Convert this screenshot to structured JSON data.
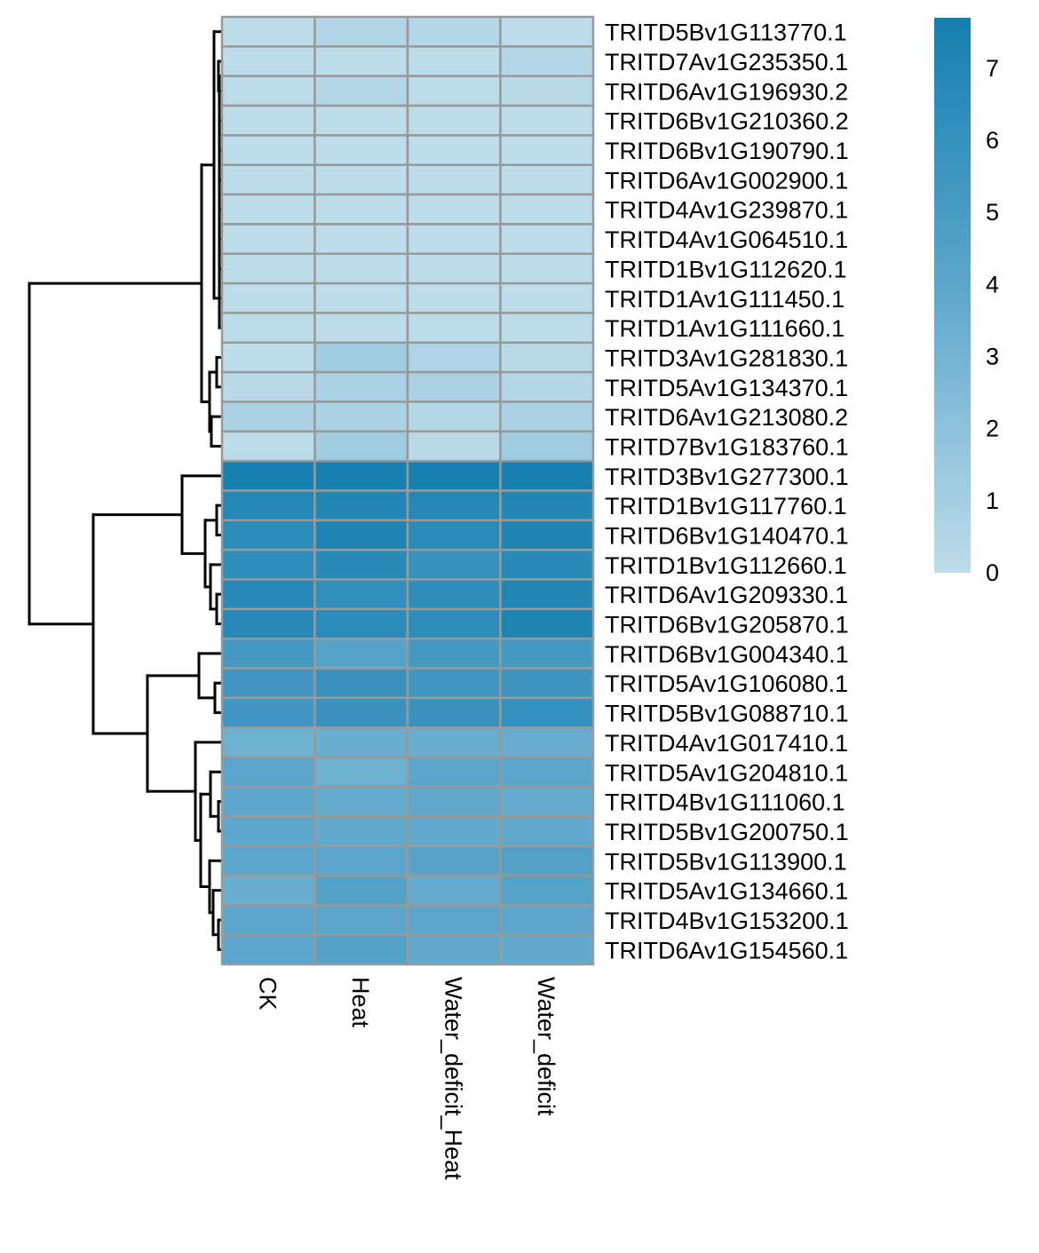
{
  "chart_data": {
    "type": "heatmap",
    "title": "",
    "columns": [
      "CK",
      "Heat",
      "Water_deficit_Heat",
      "Water_deficit"
    ],
    "rows": [
      "TRITD5Bv1G113770.1",
      "TRITD7Av1G235350.1",
      "TRITD6Av1G196930.2",
      "TRITD6Bv1G210360.2",
      "TRITD6Bv1G190790.1",
      "TRITD6Av1G002900.1",
      "TRITD4Av1G239870.1",
      "TRITD4Av1G064510.1",
      "TRITD1Bv1G112620.1",
      "TRITD1Av1G111450.1",
      "TRITD1Av1G111660.1",
      "TRITD3Av1G281830.1",
      "TRITD5Av1G134370.1",
      "TRITD6Av1G213080.2",
      "TRITD7Bv1G183760.1",
      "TRITD3Bv1G277300.1",
      "TRITD1Bv1G117760.1",
      "TRITD6Bv1G140470.1",
      "TRITD1Bv1G112660.1",
      "TRITD6Av1G209330.1",
      "TRITD6Bv1G205870.1",
      "TRITD6Bv1G004340.1",
      "TRITD5Av1G106080.1",
      "TRITD5Bv1G088710.1",
      "TRITD4Av1G017410.1",
      "TRITD5Av1G204810.1",
      "TRITD4Bv1G111060.1",
      "TRITD5Bv1G200750.1",
      "TRITD5Bv1G113900.1",
      "TRITD5Av1G134660.1",
      "TRITD4Bv1G153200.1",
      "TRITD6Av1G154560.1"
    ],
    "values": [
      [
        0.1,
        0.5,
        0.4,
        0.1
      ],
      [
        0.0,
        0.1,
        0.1,
        0.4
      ],
      [
        0.1,
        0.4,
        0.1,
        0.2
      ],
      [
        0.0,
        0.0,
        0.0,
        0.0
      ],
      [
        0.0,
        0.0,
        0.0,
        0.0
      ],
      [
        0.0,
        0.0,
        0.0,
        0.0
      ],
      [
        0.0,
        0.0,
        0.0,
        0.0
      ],
      [
        0.0,
        0.0,
        0.0,
        0.0
      ],
      [
        0.0,
        0.0,
        0.0,
        0.0
      ],
      [
        0.0,
        0.0,
        0.0,
        0.0
      ],
      [
        0.0,
        0.0,
        0.0,
        0.0
      ],
      [
        0.0,
        1.2,
        0.7,
        0.2
      ],
      [
        0.2,
        0.8,
        0.8,
        0.4
      ],
      [
        0.8,
        0.8,
        0.4,
        0.8
      ],
      [
        0.0,
        1.2,
        0.2,
        1.2
      ],
      [
        7.6,
        7.6,
        7.6,
        7.6
      ],
      [
        6.9,
        7.0,
        6.9,
        7.0
      ],
      [
        6.5,
        7.2,
        6.6,
        7.2
      ],
      [
        6.3,
        6.7,
        6.0,
        6.7
      ],
      [
        6.8,
        6.2,
        6.3,
        7.0
      ],
      [
        6.8,
        6.5,
        6.3,
        7.2
      ],
      [
        5.3,
        4.3,
        5.3,
        5.3
      ],
      [
        5.4,
        5.8,
        5.4,
        5.6
      ],
      [
        5.4,
        5.8,
        5.8,
        6.1
      ],
      [
        3.2,
        3.4,
        3.4,
        3.5
      ],
      [
        4.1,
        3.2,
        4.1,
        4.1
      ],
      [
        3.9,
        3.6,
        3.8,
        3.6
      ],
      [
        3.9,
        3.7,
        3.7,
        3.8
      ],
      [
        3.9,
        4.0,
        4.2,
        4.5
      ],
      [
        3.4,
        4.4,
        3.6,
        4.3
      ],
      [
        4.0,
        4.0,
        4.0,
        4.0
      ],
      [
        4.0,
        4.4,
        3.8,
        3.8
      ]
    ],
    "colorbar": {
      "ticks": [
        "0",
        "1",
        "2",
        "3",
        "4",
        "5",
        "6",
        "7"
      ],
      "range": [
        0,
        7.7
      ],
      "low_color": "#BEDDEA",
      "mid_color": "#5FA8CC",
      "high_color": "#157FB0"
    },
    "cell_border_color": "#999999",
    "row_dendrogram": true,
    "column_dendrogram": false,
    "legend_position": "top-right"
  }
}
